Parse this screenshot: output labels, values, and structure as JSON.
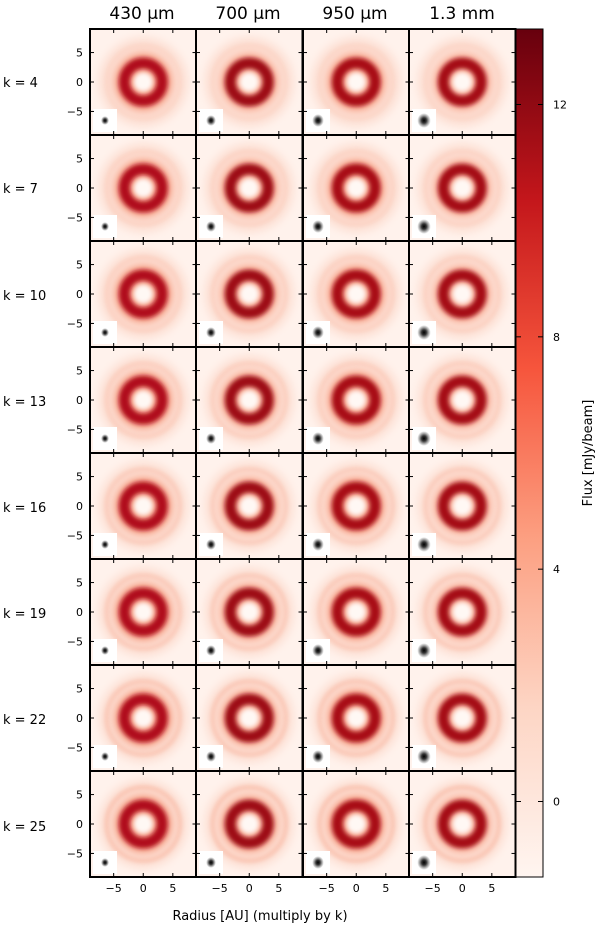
{
  "chart_data": {
    "type": "heatmap",
    "column_titles": [
      "430 μm",
      "700 μm",
      "950 μm",
      "1.3 mm"
    ],
    "row_labels": [
      "k = 4",
      "k = 7",
      "k = 10",
      "k = 13",
      "k = 16",
      "k = 19",
      "k = 22",
      "k = 25"
    ],
    "xlabel": "Radius [AU] (multiply by k)",
    "colorbar_label": "Flux [mJy/beam]",
    "x_ticks": [
      "−5",
      "0",
      "5"
    ],
    "y_ticks": [
      "5",
      "0",
      "−5"
    ],
    "axis_range": [
      -9,
      9
    ],
    "colorbar_ticks": [
      "12",
      "8",
      "4",
      "0"
    ],
    "colorbar_tick_values": [
      12,
      8,
      4,
      0
    ],
    "colorbar_range": [
      -1.3,
      13.3
    ],
    "colormap": "Reds",
    "colors": {
      "low": "#fff5f0",
      "mid": "#fb6a4a",
      "high": "#67000d"
    },
    "panels_note_values": {
      "ring_radius_AU": 3.2,
      "beam_inset": "grayscale beam in lower-left of each panel"
    }
  }
}
